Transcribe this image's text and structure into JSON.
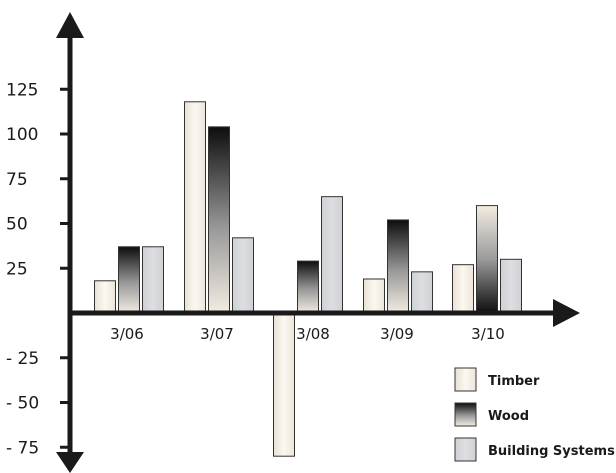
{
  "chart_data": {
    "type": "bar",
    "categories": [
      "3/06",
      "3/07",
      "3/08",
      "3/09",
      "3/10"
    ],
    "series": [
      {
        "name": "Timber",
        "values": [
          18,
          118,
          -80,
          19,
          27
        ],
        "color": "#f1ebe0"
      },
      {
        "name": "Wood",
        "values": [
          37,
          104,
          29,
          52,
          60
        ],
        "color": "#555555"
      },
      {
        "name": "Building Systems",
        "values": [
          37,
          42,
          65,
          23,
          30
        ],
        "color": "#d3d5d8"
      }
    ],
    "y_ticks": [
      {
        "value": 125,
        "label": "125"
      },
      {
        "value": 100,
        "label": "100"
      },
      {
        "value": 75,
        "label": "75"
      },
      {
        "value": 50,
        "label": "50"
      },
      {
        "value": 25,
        "label": "25"
      },
      {
        "value": -25,
        "label": "- 25"
      },
      {
        "value": -50,
        "label": "- 50"
      },
      {
        "value": -75,
        "label": "- 75"
      }
    ],
    "ylim": [
      -80,
      125
    ],
    "title": "",
    "xlabel": "",
    "ylabel": "",
    "grid": false,
    "legend_position": "bottom-right"
  }
}
